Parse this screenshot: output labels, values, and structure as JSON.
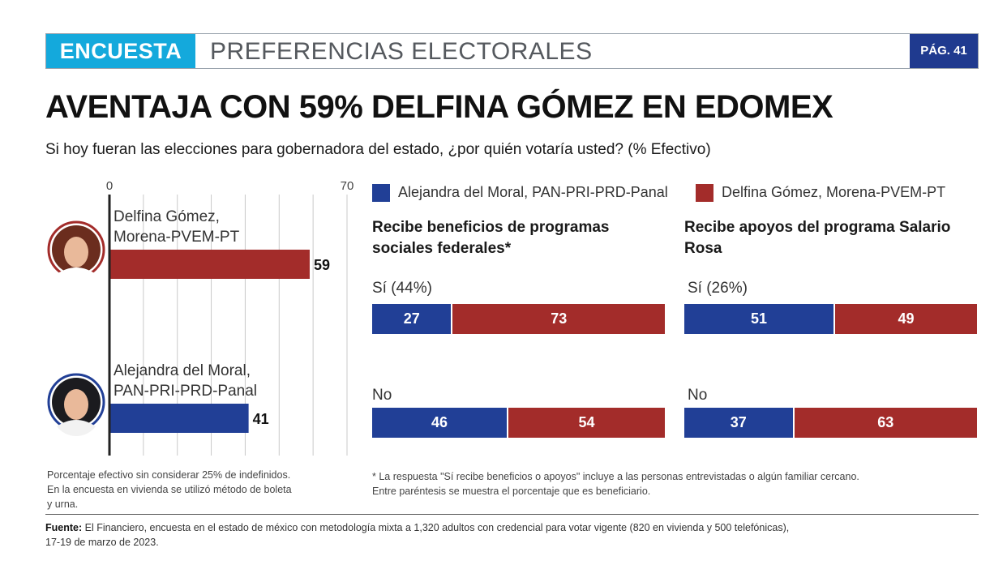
{
  "header": {
    "section": "ENCUESTA",
    "topic": "PREFERENCIAS ELECTORALES",
    "page": "PÁG. 41",
    "section_color": "#14a9dc",
    "page_color": "#1f3a8f"
  },
  "headline": "AVENTAJA CON 59% DELFINA GÓMEZ EN EDOMEX",
  "question": "Si hoy fueran las elecciones para gobernadora del estado, ¿por quién votaría usted? (% Efectivo)",
  "colors": {
    "blue": "#213f96",
    "red": "#a32c2a"
  },
  "legend": [
    {
      "label": "Alejandra del Moral, PAN-PRI-PRD-Panal",
      "color": "#213f96"
    },
    {
      "label": "Delfina Gómez, Morena-PVEM-PT",
      "color": "#a32c2a"
    }
  ],
  "chart_data": [
    {
      "type": "bar",
      "orientation": "horizontal",
      "xlim": [
        0,
        70
      ],
      "tick_labels": [
        "0",
        "70"
      ],
      "grid": true,
      "categories": [
        {
          "label_lines": [
            "Delfina Gómez,",
            "Morena-PVEM-PT"
          ],
          "value": 59,
          "color": "#a32c2a",
          "icon": "candidate-photo-avatar"
        },
        {
          "label_lines": [
            "Alejandra del Moral,",
            "PAN-PRI-PRD-Panal"
          ],
          "value": 41,
          "color": "#213f96",
          "icon": "candidate-photo-avatar"
        }
      ]
    },
    {
      "type": "bar",
      "stacked": true,
      "title": "Recibe beneficios de programas sociales federales*",
      "categories": [
        "Sí (44%)",
        "No"
      ],
      "series": [
        {
          "name": "Alejandra del Moral, PAN-PRI-PRD-Panal",
          "values": [
            27,
            46
          ]
        },
        {
          "name": "Delfina Gómez, Morena-PVEM-PT",
          "values": [
            73,
            54
          ]
        }
      ]
    },
    {
      "type": "bar",
      "stacked": true,
      "title": "Recibe apoyos del programa Salario Rosa",
      "categories": [
        "Sí (26%)",
        "No"
      ],
      "series": [
        {
          "name": "Alejandra del Moral, PAN-PRI-PRD-Panal",
          "values": [
            51,
            37
          ]
        },
        {
          "name": "Delfina Gómez, Morena-PVEM-PT",
          "values": [
            49,
            63
          ]
        }
      ]
    }
  ],
  "notes": {
    "left": [
      "Porcentaje efectivo sin considerar 25% de indefinidos.",
      "En la encuesta en vivienda se utilizó método de boleta",
      "y urna."
    ],
    "right": [
      "* La respuesta \"Sí recibe beneficios o apoyos\" incluye a las personas entrevistadas o algún familiar cercano.",
      "Entre paréntesis se muestra el porcentaje que es beneficiario."
    ]
  },
  "source": {
    "label": "Fuente:",
    "text": "El Financiero, encuesta en el estado de méxico con metodología mixta a 1,320 adultos con credencial para votar vigente (820 en vivienda y 500 telefónicas),",
    "text2": "17-19 de marzo de 2023."
  }
}
